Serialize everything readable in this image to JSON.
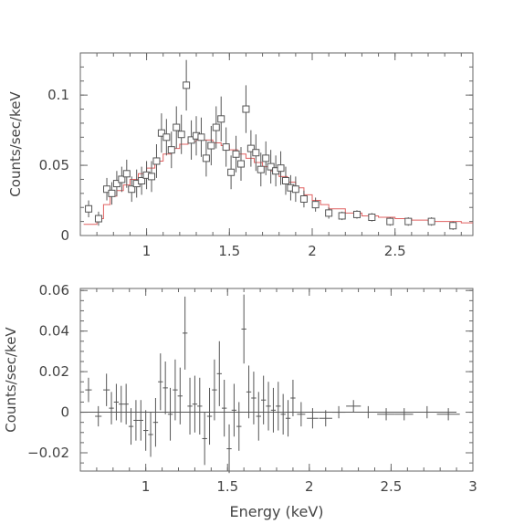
{
  "chart_data": [
    {
      "type": "scatter",
      "title": "",
      "xlabel": "",
      "ylabel": "Counts/sec/keV",
      "xlim": [
        0.6,
        2.97
      ],
      "ylim": [
        0,
        0.13
      ],
      "x_ticks": [
        1,
        1.5,
        2,
        2.5
      ],
      "x_tick_labels": [
        "1",
        "1.5",
        "2",
        "2.5"
      ],
      "y_ticks": [
        0,
        0.05,
        0.1
      ],
      "y_tick_labels": [
        "0",
        "0.05",
        "0.1"
      ],
      "grid": false,
      "legend": "none",
      "series": [
        {
          "kind": "data",
          "marker": "open-square",
          "color": "#555555",
          "x": [
            0.65,
            0.71,
            0.76,
            0.79,
            0.82,
            0.85,
            0.88,
            0.91,
            0.94,
            0.97,
            1.0,
            1.03,
            1.06,
            1.09,
            1.12,
            1.15,
            1.18,
            1.21,
            1.24,
            1.27,
            1.3,
            1.33,
            1.36,
            1.39,
            1.42,
            1.45,
            1.48,
            1.51,
            1.54,
            1.57,
            1.6,
            1.63,
            1.66,
            1.69,
            1.72,
            1.75,
            1.78,
            1.81,
            1.84,
            1.87,
            1.9,
            1.95,
            2.02,
            2.1,
            2.18,
            2.27,
            2.36,
            2.47,
            2.58,
            2.72,
            2.85
          ],
          "y": [
            0.019,
            0.012,
            0.033,
            0.03,
            0.037,
            0.04,
            0.044,
            0.033,
            0.037,
            0.039,
            0.043,
            0.042,
            0.053,
            0.073,
            0.07,
            0.061,
            0.077,
            0.072,
            0.107,
            0.068,
            0.071,
            0.07,
            0.055,
            0.064,
            0.077,
            0.083,
            0.063,
            0.045,
            0.058,
            0.051,
            0.09,
            0.062,
            0.059,
            0.047,
            0.055,
            0.049,
            0.046,
            0.048,
            0.039,
            0.034,
            0.033,
            0.026,
            0.022,
            0.016,
            0.014,
            0.015,
            0.013,
            0.01,
            0.01,
            0.01,
            0.007
          ],
          "yerr": [
            0.006,
            0.005,
            0.008,
            0.008,
            0.009,
            0.009,
            0.01,
            0.009,
            0.01,
            0.01,
            0.01,
            0.011,
            0.012,
            0.014,
            0.013,
            0.013,
            0.015,
            0.014,
            0.018,
            0.014,
            0.014,
            0.014,
            0.013,
            0.014,
            0.015,
            0.016,
            0.014,
            0.012,
            0.013,
            0.012,
            0.017,
            0.013,
            0.013,
            0.012,
            0.012,
            0.012,
            0.011,
            0.012,
            0.01,
            0.009,
            0.009,
            0.006,
            0.005,
            0.004,
            0.003,
            0.003,
            0.003,
            0.003,
            0.003,
            0.003,
            0.003
          ]
        },
        {
          "kind": "model",
          "style": "step",
          "color": "#e06060",
          "x": [
            0.62,
            0.7,
            0.74,
            0.78,
            0.82,
            0.86,
            0.9,
            0.95,
            1.0,
            1.05,
            1.1,
            1.15,
            1.2,
            1.25,
            1.3,
            1.35,
            1.4,
            1.45,
            1.5,
            1.55,
            1.6,
            1.65,
            1.7,
            1.75,
            1.8,
            1.85,
            1.9,
            1.95,
            2.0,
            2.05,
            2.1,
            2.2,
            2.3,
            2.4,
            2.5,
            2.6,
            2.7,
            2.8,
            2.9,
            2.97
          ],
          "y": [
            0.008,
            0.012,
            0.022,
            0.028,
            0.032,
            0.036,
            0.04,
            0.044,
            0.048,
            0.053,
            0.058,
            0.062,
            0.065,
            0.067,
            0.068,
            0.068,
            0.066,
            0.064,
            0.061,
            0.058,
            0.055,
            0.052,
            0.049,
            0.046,
            0.042,
            0.038,
            0.034,
            0.029,
            0.025,
            0.022,
            0.019,
            0.016,
            0.014,
            0.013,
            0.012,
            0.011,
            0.01,
            0.01,
            0.009,
            0.009
          ]
        }
      ]
    },
    {
      "type": "scatter",
      "title": "",
      "xlabel": "Energy (keV)",
      "ylabel": "Counts/sec/keV",
      "xlim": [
        0.6,
        3.0
      ],
      "ylim": [
        -0.029,
        0.061
      ],
      "x_ticks": [
        1,
        1.5,
        2,
        2.5,
        3
      ],
      "x_tick_labels": [
        "1",
        "1.5",
        "2",
        "2.5",
        "3"
      ],
      "y_ticks": [
        -0.02,
        0,
        0.02,
        0.04,
        0.06
      ],
      "y_tick_labels": [
        "−0.02",
        "0",
        "0.02",
        "0.04",
        "0.06"
      ],
      "grid": false,
      "legend": "none",
      "series": [
        {
          "kind": "residuals",
          "marker": "cross",
          "color": "#555555",
          "x": [
            0.65,
            0.71,
            0.76,
            0.79,
            0.82,
            0.85,
            0.88,
            0.91,
            0.94,
            0.97,
            1.0,
            1.03,
            1.06,
            1.09,
            1.12,
            1.15,
            1.18,
            1.21,
            1.24,
            1.27,
            1.3,
            1.33,
            1.36,
            1.39,
            1.42,
            1.45,
            1.48,
            1.51,
            1.54,
            1.57,
            1.6,
            1.63,
            1.66,
            1.69,
            1.72,
            1.75,
            1.78,
            1.81,
            1.84,
            1.87,
            1.9,
            1.95,
            2.02,
            2.1,
            2.18,
            2.27,
            2.36,
            2.47,
            2.58,
            2.72,
            2.85
          ],
          "y": [
            0.011,
            -0.002,
            0.011,
            0.002,
            0.005,
            0.004,
            0.004,
            -0.007,
            -0.004,
            -0.004,
            -0.009,
            -0.011,
            -0.005,
            0.015,
            0.012,
            -0.001,
            0.011,
            0.008,
            0.039,
            0.003,
            0.004,
            0.003,
            -0.013,
            -0.002,
            0.011,
            0.019,
            0.002,
            -0.018,
            0.001,
            -0.007,
            0.041,
            0.01,
            0.007,
            -0.002,
            0.006,
            0.003,
            0.001,
            0.003,
            -0.001,
            -0.003,
            0.007,
            -0.001,
            -0.003,
            -0.003,
            0.0,
            0.003,
            0.0,
            -0.001,
            -0.001,
            0.0,
            -0.001
          ],
          "yerr": [
            0.006,
            0.005,
            0.008,
            0.008,
            0.009,
            0.009,
            0.01,
            0.009,
            0.01,
            0.01,
            0.01,
            0.011,
            0.012,
            0.014,
            0.013,
            0.013,
            0.015,
            0.014,
            0.018,
            0.014,
            0.014,
            0.014,
            0.013,
            0.014,
            0.015,
            0.016,
            0.014,
            0.012,
            0.013,
            0.012,
            0.017,
            0.013,
            0.013,
            0.012,
            0.012,
            0.012,
            0.011,
            0.012,
            0.01,
            0.009,
            0.009,
            0.006,
            0.005,
            0.004,
            0.003,
            0.003,
            0.003,
            0.003,
            0.003,
            0.003,
            0.003
          ],
          "xerr": [
            0.02,
            0.02,
            0.02,
            0.015,
            0.015,
            0.015,
            0.015,
            0.015,
            0.015,
            0.015,
            0.015,
            0.015,
            0.015,
            0.015,
            0.015,
            0.015,
            0.015,
            0.015,
            0.015,
            0.015,
            0.015,
            0.015,
            0.015,
            0.015,
            0.015,
            0.015,
            0.015,
            0.015,
            0.015,
            0.015,
            0.015,
            0.015,
            0.015,
            0.015,
            0.015,
            0.015,
            0.015,
            0.015,
            0.015,
            0.015,
            0.015,
            0.025,
            0.035,
            0.04,
            0.04,
            0.045,
            0.045,
            0.055,
            0.055,
            0.07,
            0.07
          ]
        },
        {
          "kind": "zero-line",
          "color": "#555555",
          "x": [
            0.6,
            2.9
          ],
          "y": [
            0,
            0
          ]
        }
      ]
    }
  ]
}
